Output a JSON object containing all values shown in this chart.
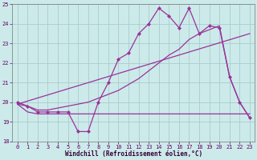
{
  "xlabel": "Windchill (Refroidissement éolien,°C)",
  "bg_color": "#cceaea",
  "grid_color": "#aacccc",
  "line_color": "#993399",
  "xlim": [
    -0.5,
    23.5
  ],
  "ylim": [
    18,
    25
  ],
  "yticks": [
    18,
    19,
    20,
    21,
    22,
    23,
    24,
    25
  ],
  "xticks": [
    0,
    1,
    2,
    3,
    4,
    5,
    6,
    7,
    8,
    9,
    10,
    11,
    12,
    13,
    14,
    15,
    16,
    17,
    18,
    19,
    20,
    21,
    22,
    23
  ],
  "line_flat_x": [
    0,
    1,
    2,
    3,
    4,
    5,
    6,
    7,
    8,
    9,
    10,
    11,
    12,
    13,
    14,
    15,
    16,
    17,
    18,
    19,
    20,
    21,
    22,
    23
  ],
  "line_flat_y": [
    19.9,
    19.5,
    19.4,
    19.4,
    19.4,
    19.4,
    19.4,
    19.4,
    19.4,
    19.4,
    19.4,
    19.4,
    19.4,
    19.4,
    19.4,
    19.4,
    19.4,
    19.4,
    19.4,
    19.4,
    19.4,
    19.4,
    19.4,
    19.4
  ],
  "line_jagged_x": [
    0,
    1,
    2,
    3,
    4,
    5,
    6,
    7,
    8,
    9,
    10,
    11,
    12,
    13,
    14,
    15,
    16,
    17,
    18,
    19,
    20,
    21,
    22,
    23
  ],
  "line_jagged_y": [
    20.0,
    19.8,
    19.5,
    19.5,
    19.5,
    19.5,
    18.5,
    18.5,
    20.0,
    21.0,
    22.2,
    22.5,
    23.5,
    24.0,
    24.8,
    24.4,
    23.8,
    24.8,
    23.5,
    23.9,
    23.8,
    21.3,
    20.0,
    19.2
  ],
  "line_trend1_x": [
    0,
    1,
    2,
    3,
    4,
    5,
    6,
    7,
    8,
    9,
    10,
    11,
    12,
    13,
    14,
    15,
    16,
    17,
    18,
    19,
    20,
    21,
    22,
    23
  ],
  "line_trend1_y": [
    19.9,
    19.8,
    19.6,
    19.6,
    19.7,
    19.8,
    19.9,
    20.0,
    20.2,
    20.4,
    20.6,
    20.9,
    21.2,
    21.6,
    22.0,
    22.4,
    22.7,
    23.2,
    23.5,
    23.7,
    23.9,
    21.3,
    20.0,
    19.2
  ],
  "line_trend2_x": [
    0,
    23
  ],
  "line_trend2_y": [
    19.9,
    23.5
  ]
}
